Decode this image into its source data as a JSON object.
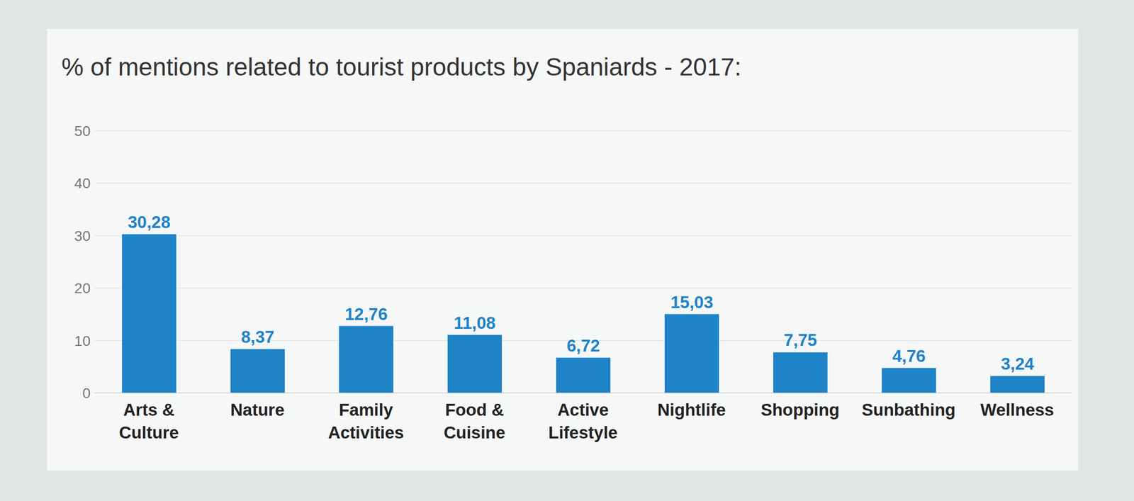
{
  "chart_data": {
    "type": "bar",
    "title": "% of mentions related to tourist products by Spaniards - 2017:",
    "categories": [
      "Arts & Culture",
      "Nature",
      "Family Activities",
      "Food & Cuisine",
      "Active Lifestyle",
      "Nightlife",
      "Shopping",
      "Sunbathing",
      "Wellness"
    ],
    "values": [
      30.28,
      8.37,
      12.76,
      11.08,
      6.72,
      15.03,
      7.75,
      4.76,
      3.24
    ],
    "value_labels": [
      "30,28",
      "8,37",
      "12,76",
      "11,08",
      "6,72",
      "15,03",
      "7,75",
      "4,76",
      "3,24"
    ],
    "color": "#1f83c8",
    "ylim": [
      0,
      50
    ],
    "yticks": [
      0,
      10,
      20,
      30,
      40,
      50
    ],
    "grid": true,
    "data_labels": true
  }
}
